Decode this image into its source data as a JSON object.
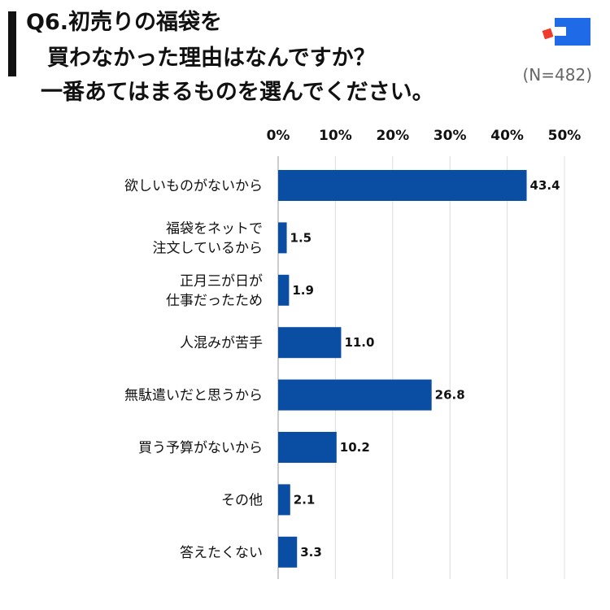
{
  "header": {
    "title_lines": [
      "Q6.初売りの福袋を",
      "買わなかった理由はなんですか？",
      "一番あてはまるものを選んでください。"
    ],
    "sample_size": "(N=482)"
  },
  "colors": {
    "bar": "#0a4ea3",
    "logo_blue": "#1f6ae6",
    "logo_red": "#ee3b2b"
  },
  "chart_data": {
    "type": "bar",
    "orientation": "horizontal",
    "title": "買わなかった理由はなんですか？",
    "categories": [
      [
        "欲しいものがないから"
      ],
      [
        "福袋をネットで",
        "注文しているから"
      ],
      [
        "正月三が日が",
        "仕事だったため"
      ],
      [
        "人混みが苦手"
      ],
      [
        "無駄遣いだと思うから"
      ],
      [
        "買う予算がないから"
      ],
      [
        "その他"
      ],
      [
        "答えたくない"
      ]
    ],
    "values": [
      43.4,
      1.5,
      1.9,
      11.0,
      26.8,
      10.2,
      2.1,
      3.3
    ],
    "value_labels": [
      "43.4",
      "1.5",
      "1.9",
      "11.0",
      "26.8",
      "10.2",
      "2.1",
      "3.3"
    ],
    "xlim": [
      0,
      50
    ],
    "xticks": [
      0,
      10,
      20,
      30,
      40,
      50
    ],
    "xtick_labels": [
      "0%",
      "10%",
      "20%",
      "30%",
      "40%",
      "50%"
    ],
    "grid": true,
    "unit": "%"
  }
}
